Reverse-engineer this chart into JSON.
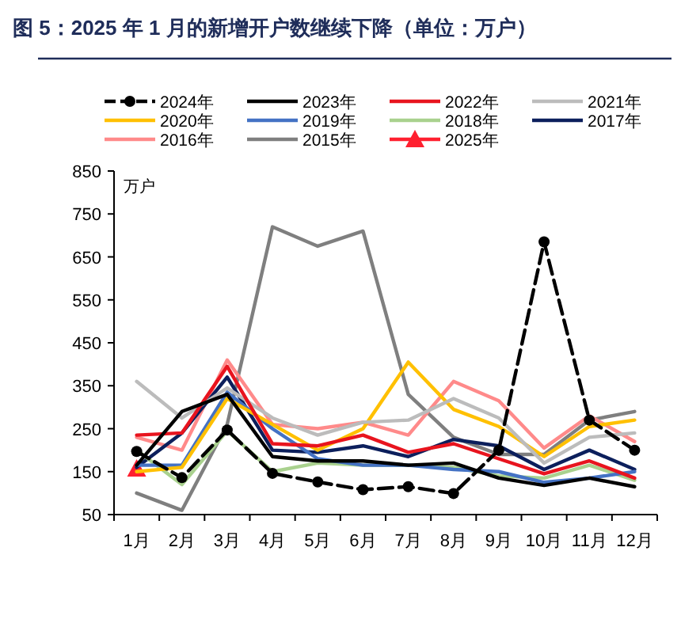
{
  "chart_data": {
    "type": "line",
    "title": "图 5：2025 年 1 月的新增开户数继续下降（单位：万户）",
    "ylabel": "万户",
    "categories": [
      "1月",
      "2月",
      "3月",
      "4月",
      "5月",
      "6月",
      "7月",
      "8月",
      "9月",
      "10月",
      "11月",
      "12月"
    ],
    "ylim": [
      50,
      850
    ],
    "yticks": [
      50,
      150,
      250,
      350,
      450,
      550,
      650,
      750,
      850
    ],
    "grid": false,
    "legend": "top",
    "marker": "none",
    "line_style": "solid",
    "series": [
      {
        "name": "2024年",
        "color": "#000000",
        "marker": "circle",
        "line_style": "dashed",
        "values": [
          197,
          136,
          247,
          146,
          126,
          108,
          115,
          99,
          200,
          685,
          270,
          200
        ]
      },
      {
        "name": "2023年",
        "color": "#000000",
        "values": [
          165,
          290,
          330,
          185,
          175,
          175,
          165,
          170,
          135,
          118,
          135,
          115
        ]
      },
      {
        "name": "2022年",
        "color": "#e8141e",
        "values": [
          235,
          240,
          395,
          215,
          210,
          235,
          195,
          215,
          180,
          145,
          175,
          135
        ]
      },
      {
        "name": "2021年",
        "color": "#bcbcbc",
        "values": [
          360,
          275,
          345,
          275,
          235,
          265,
          270,
          320,
          275,
          170,
          230,
          240
        ]
      },
      {
        "name": "2020年",
        "color": "#ffc000",
        "values": [
          150,
          160,
          320,
          260,
          200,
          250,
          405,
          295,
          255,
          185,
          255,
          270
        ]
      },
      {
        "name": "2019年",
        "color": "#4472c4",
        "values": [
          165,
          165,
          335,
          250,
          180,
          165,
          165,
          155,
          150,
          125,
          135,
          150
        ]
      },
      {
        "name": "2018年",
        "color": "#a9d18e",
        "values": [
          200,
          120,
          245,
          150,
          170,
          165,
          165,
          160,
          140,
          135,
          165,
          130
        ]
      },
      {
        "name": "2017年",
        "color": "#0c1f5c",
        "values": [
          160,
          240,
          370,
          200,
          195,
          210,
          185,
          225,
          210,
          155,
          200,
          155
        ]
      },
      {
        "name": "2016年",
        "color": "#ff8a8a",
        "values": [
          230,
          200,
          410,
          260,
          250,
          265,
          235,
          360,
          315,
          205,
          280,
          220
        ]
      },
      {
        "name": "2015年",
        "color": "#7f7f7f",
        "values": [
          100,
          60,
          260,
          720,
          675,
          710,
          330,
          230,
          190,
          190,
          270,
          290
        ]
      },
      {
        "name": "2025年",
        "color": "#ff2030",
        "marker": "triangle",
        "values": [
          157,
          null,
          null,
          null,
          null,
          null,
          null,
          null,
          null,
          null,
          null,
          null
        ]
      }
    ]
  }
}
